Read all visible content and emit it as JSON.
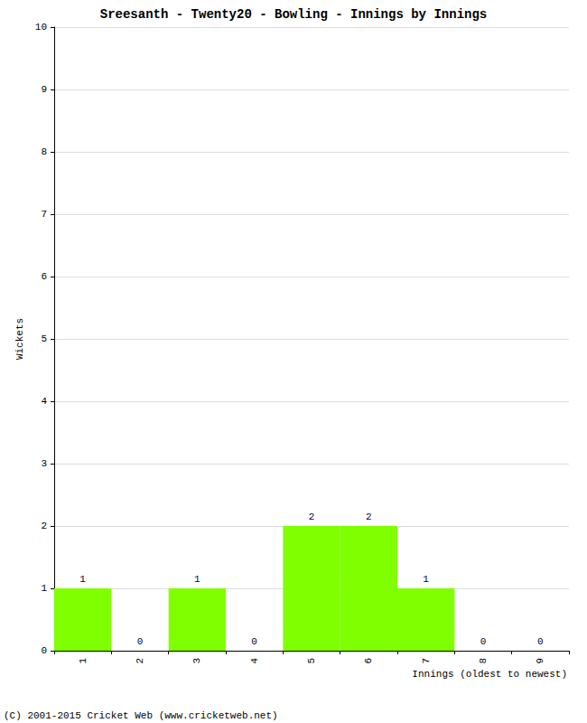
{
  "chart_data": {
    "type": "bar",
    "title": "Sreesanth - Twenty20 - Bowling - Innings by Innings",
    "x_label": "Innings (oldest to newest)",
    "y_label": "Wickets",
    "categories": [
      "1",
      "2",
      "3",
      "4",
      "5",
      "6",
      "7",
      "8",
      "9"
    ],
    "values": [
      1,
      0,
      1,
      0,
      2,
      2,
      1,
      0,
      0
    ],
    "color": "#80ff00",
    "ylim": [
      0,
      10
    ],
    "yticks": [
      0,
      1,
      2,
      3,
      4,
      5,
      6,
      7,
      8,
      9,
      10
    ],
    "grid": true,
    "data_labels": true,
    "annotations": [
      "(C) 2001-2015 Cricket Web (www.cricketweb.net)"
    ]
  }
}
